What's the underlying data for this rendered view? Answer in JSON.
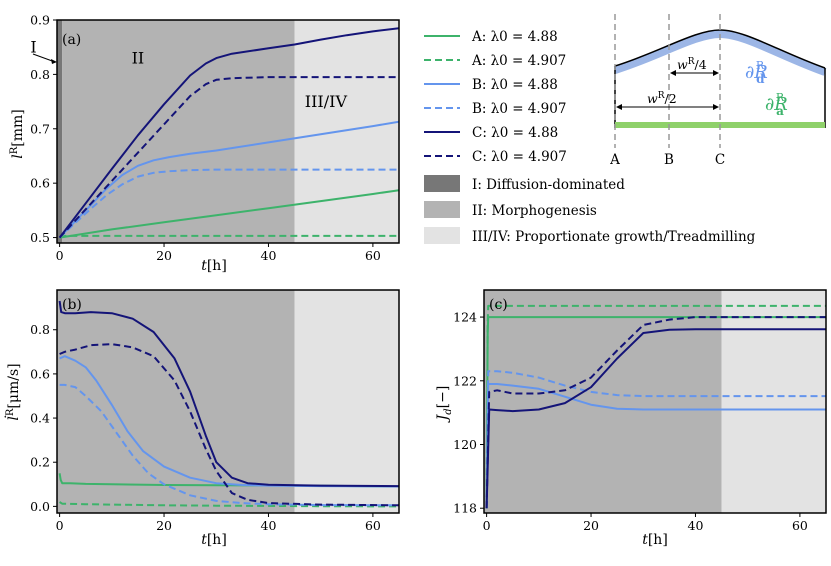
{
  "colors": {
    "A": "#3db36b",
    "B": "#6495ed",
    "C": "#141478",
    "region_I": "#777777",
    "region_II": "#b3b3b3",
    "region_III": "#e3e3e3",
    "apical": "#8fd16a",
    "dorsal": "#9cb6e6"
  },
  "legend": {
    "entries": [
      {
        "label": "A: λ0 = 4.88",
        "series": "A",
        "style": "solid"
      },
      {
        "label": "A: λ0 = 4.907",
        "series": "A",
        "style": "dashed"
      },
      {
        "label": "B: λ0 = 4.88",
        "series": "B",
        "style": "solid"
      },
      {
        "label": "B: λ0 = 4.907",
        "series": "B",
        "style": "dashed"
      },
      {
        "label": "C: λ0 = 4.88",
        "series": "C",
        "style": "solid"
      },
      {
        "label": "C: λ0 = 4.907",
        "series": "C",
        "style": "dashed"
      }
    ],
    "regions": [
      {
        "label": "I: Diffusion-dominated",
        "color_key": "region_I"
      },
      {
        "label": "II: Morphogenesis",
        "color_key": "region_II"
      },
      {
        "label": "III/IV: Proportionate growth/Treadmilling",
        "color_key": "region_III"
      }
    ]
  },
  "schematic": {
    "points": [
      "A",
      "B",
      "C"
    ],
    "w_quarter": "w",
    "w_quarter_sup": "R",
    "w_quarter_tail": "/4",
    "w_half": "w",
    "w_half_sup": "R",
    "w_half_tail": "/2",
    "dorsal_label": "∂R",
    "dorsal_sup": "R",
    "dorsal_sub": "d",
    "apical_label": "∂R",
    "apical_sup": "R",
    "apical_sub": "a"
  },
  "chart_data": [
    {
      "type": "line",
      "panel_label": "(a)",
      "xlabel": "t[h]",
      "ylabel": "l^R[mm]",
      "xlim": [
        -0.5,
        65
      ],
      "ylim": [
        0.49,
        0.9
      ],
      "xticks": [
        0,
        20,
        40,
        60
      ],
      "yticks": [
        0.5,
        0.6,
        0.7,
        0.8,
        0.9
      ],
      "ytick_labels": [
        "0.5",
        "0.6",
        "0.7",
        "0.8",
        "0.9"
      ],
      "regions": [
        {
          "name": "I",
          "from": -0.5,
          "to": 0.5,
          "color_key": "region_I"
        },
        {
          "name": "II",
          "from": 0.5,
          "to": 45,
          "color_key": "region_II"
        },
        {
          "name": "III/IV",
          "from": 45,
          "to": 65,
          "color_key": "region_III"
        }
      ],
      "annotations": [
        {
          "text": "I",
          "x": -5,
          "y": 0.84
        },
        {
          "text": "II",
          "x": 15,
          "y": 0.82
        },
        {
          "text": "III/IV",
          "x": 51,
          "y": 0.74
        }
      ],
      "series": [
        {
          "name": "A: λ0 = 4.88",
          "color_key": "A",
          "dash": false,
          "x": [
            0,
            10,
            20,
            30,
            40,
            50,
            60,
            65
          ],
          "y": [
            0.5,
            0.515,
            0.528,
            0.541,
            0.554,
            0.567,
            0.58,
            0.587
          ]
        },
        {
          "name": "A: λ0 = 4.907",
          "color_key": "A",
          "dash": true,
          "x": [
            0,
            1,
            10,
            30,
            50,
            65
          ],
          "y": [
            0.5,
            0.503,
            0.503,
            0.503,
            0.503,
            0.503
          ]
        },
        {
          "name": "B: λ0 = 4.88",
          "color_key": "B",
          "dash": false,
          "x": [
            0,
            3,
            6,
            9,
            12,
            15,
            18,
            21,
            25,
            30,
            40,
            50,
            60,
            65
          ],
          "y": [
            0.5,
            0.53,
            0.56,
            0.59,
            0.615,
            0.632,
            0.642,
            0.648,
            0.654,
            0.66,
            0.675,
            0.69,
            0.705,
            0.713
          ]
        },
        {
          "name": "B: λ0 = 4.907",
          "color_key": "B",
          "dash": true,
          "x": [
            0,
            3,
            6,
            9,
            12,
            15,
            18,
            21,
            25,
            30,
            40,
            50,
            65
          ],
          "y": [
            0.5,
            0.527,
            0.553,
            0.578,
            0.598,
            0.612,
            0.619,
            0.622,
            0.624,
            0.625,
            0.625,
            0.625,
            0.625
          ]
        },
        {
          "name": "C: λ0 = 4.88",
          "color_key": "C",
          "dash": false,
          "x": [
            0,
            5,
            10,
            15,
            20,
            25,
            28,
            30,
            33,
            40,
            45,
            50,
            55,
            60,
            65
          ],
          "y": [
            0.5,
            0.563,
            0.626,
            0.688,
            0.745,
            0.798,
            0.82,
            0.83,
            0.838,
            0.848,
            0.855,
            0.864,
            0.872,
            0.879,
            0.885
          ]
        },
        {
          "name": "C: λ0 = 4.907",
          "color_key": "C",
          "dash": true,
          "x": [
            0,
            5,
            10,
            15,
            20,
            25,
            28,
            30,
            33,
            40,
            50,
            65
          ],
          "y": [
            0.5,
            0.552,
            0.604,
            0.656,
            0.708,
            0.76,
            0.782,
            0.79,
            0.793,
            0.795,
            0.795,
            0.795
          ]
        }
      ]
    },
    {
      "type": "line",
      "panel_label": "(b)",
      "xlabel": "t[h]",
      "ylabel": "l̇^R[μm/s]",
      "xlim": [
        -0.5,
        65
      ],
      "ylim": [
        -0.03,
        0.98
      ],
      "xticks": [
        0,
        20,
        40,
        60
      ],
      "yticks": [
        0.0,
        0.2,
        0.4,
        0.6,
        0.8
      ],
      "ytick_labels": [
        "0.0",
        "0.2",
        "0.4",
        "0.6",
        "0.8"
      ],
      "regions": [
        {
          "name": "II",
          "from": -0.5,
          "to": 45,
          "color_key": "region_II"
        },
        {
          "name": "III/IV",
          "from": 45,
          "to": 65,
          "color_key": "region_III"
        }
      ],
      "series": [
        {
          "name": "A: λ0 = 4.88",
          "color_key": "A",
          "dash": false,
          "x": [
            0,
            0.2,
            0.5,
            2,
            5,
            10,
            20,
            30,
            40,
            50,
            65
          ],
          "y": [
            0.15,
            0.12,
            0.105,
            0.105,
            0.102,
            0.1,
            0.097,
            0.096,
            0.095,
            0.093,
            0.09
          ]
        },
        {
          "name": "A: λ0 = 4.907",
          "color_key": "A",
          "dash": true,
          "x": [
            0,
            0.5,
            5,
            10,
            20,
            30,
            40,
            50,
            65
          ],
          "y": [
            0.02,
            0.012,
            0.01,
            0.008,
            0.005,
            0.003,
            0.002,
            0.001,
            0.0
          ]
        },
        {
          "name": "B: λ0 = 4.88",
          "color_key": "B",
          "dash": false,
          "x": [
            0,
            1,
            3,
            5,
            7,
            10,
            13,
            16,
            20,
            25,
            30,
            35,
            40,
            50,
            65
          ],
          "y": [
            0.67,
            0.68,
            0.66,
            0.63,
            0.57,
            0.46,
            0.34,
            0.25,
            0.18,
            0.13,
            0.105,
            0.097,
            0.094,
            0.092,
            0.09
          ]
        },
        {
          "name": "B: λ0 = 4.907",
          "color_key": "B",
          "dash": true,
          "x": [
            0,
            1,
            3,
            5,
            8,
            11,
            14,
            17,
            20,
            25,
            30,
            35,
            40,
            50,
            65
          ],
          "y": [
            0.55,
            0.55,
            0.54,
            0.5,
            0.43,
            0.33,
            0.23,
            0.15,
            0.1,
            0.05,
            0.025,
            0.015,
            0.01,
            0.006,
            0.005
          ]
        },
        {
          "name": "C: λ0 = 4.88",
          "color_key": "C",
          "dash": false,
          "x": [
            0,
            0.3,
            1,
            3,
            6,
            10,
            14,
            18,
            22,
            25,
            28,
            30,
            33,
            36,
            40,
            50,
            65
          ],
          "y": [
            0.93,
            0.88,
            0.875,
            0.875,
            0.88,
            0.875,
            0.85,
            0.79,
            0.67,
            0.52,
            0.32,
            0.2,
            0.13,
            0.105,
            0.098,
            0.094,
            0.092
          ]
        },
        {
          "name": "C: λ0 = 4.907",
          "color_key": "C",
          "dash": true,
          "x": [
            0,
            1,
            3,
            6,
            10,
            14,
            18,
            22,
            25,
            28,
            30,
            33,
            36,
            40,
            50,
            65
          ],
          "y": [
            0.69,
            0.7,
            0.71,
            0.73,
            0.735,
            0.72,
            0.68,
            0.57,
            0.43,
            0.26,
            0.16,
            0.06,
            0.03,
            0.015,
            0.008,
            0.005
          ]
        }
      ]
    },
    {
      "type": "line",
      "panel_label": "(c)",
      "xlabel": "t[h]",
      "ylabel": "J_d[−]",
      "xlim": [
        -0.5,
        65
      ],
      "ylim": [
        117.85,
        124.85
      ],
      "xticks": [
        0,
        20,
        40,
        60
      ],
      "yticks": [
        118,
        120,
        122,
        124
      ],
      "ytick_labels": [
        "118",
        "120",
        "122",
        "124"
      ],
      "regions": [
        {
          "name": "II",
          "from": -0.5,
          "to": 45,
          "color_key": "region_II"
        },
        {
          "name": "III/IV",
          "from": 45,
          "to": 65,
          "color_key": "region_III"
        }
      ],
      "series": [
        {
          "name": "A: λ0 = 4.88",
          "color_key": "A",
          "dash": false,
          "x": [
            0,
            0.2,
            0.3,
            10,
            40,
            65
          ],
          "y": [
            118.0,
            123.5,
            124.0,
            124.0,
            124.0,
            124.0
          ]
        },
        {
          "name": "A: λ0 = 4.907",
          "color_key": "A",
          "dash": true,
          "x": [
            0,
            0.2,
            0.3,
            10,
            40,
            65
          ],
          "y": [
            118.0,
            123.8,
            124.35,
            124.35,
            124.35,
            124.35
          ]
        },
        {
          "name": "B: λ0 = 4.88",
          "color_key": "B",
          "dash": false,
          "x": [
            0,
            0.3,
            2,
            5,
            10,
            15,
            20,
            25,
            30,
            40,
            50,
            65
          ],
          "y": [
            118.0,
            121.9,
            121.9,
            121.85,
            121.75,
            121.5,
            121.25,
            121.12,
            121.1,
            121.1,
            121.1,
            121.1
          ]
        },
        {
          "name": "B: λ0 = 4.907",
          "color_key": "B",
          "dash": true,
          "x": [
            0,
            0.3,
            2,
            5,
            10,
            15,
            20,
            25,
            30,
            40,
            50,
            65
          ],
          "y": [
            118.0,
            122.3,
            122.3,
            122.25,
            122.1,
            121.85,
            121.65,
            121.55,
            121.52,
            121.52,
            121.52,
            121.52
          ]
        },
        {
          "name": "C: λ0 = 4.88",
          "color_key": "C",
          "dash": false,
          "x": [
            0,
            0.5,
            2,
            5,
            10,
            15,
            20,
            25,
            30,
            35,
            40,
            50,
            65
          ],
          "y": [
            118.0,
            121.1,
            121.08,
            121.05,
            121.1,
            121.3,
            121.8,
            122.7,
            123.5,
            123.6,
            123.62,
            123.62,
            123.62
          ]
        },
        {
          "name": "C: λ0 = 4.907",
          "color_key": "C",
          "dash": true,
          "x": [
            0,
            0.5,
            2,
            5,
            10,
            15,
            20,
            25,
            30,
            35,
            40,
            50,
            65
          ],
          "y": [
            118.0,
            121.65,
            121.7,
            121.6,
            121.6,
            121.7,
            122.1,
            122.95,
            123.75,
            123.92,
            124.0,
            124.0,
            124.0
          ]
        }
      ]
    }
  ]
}
